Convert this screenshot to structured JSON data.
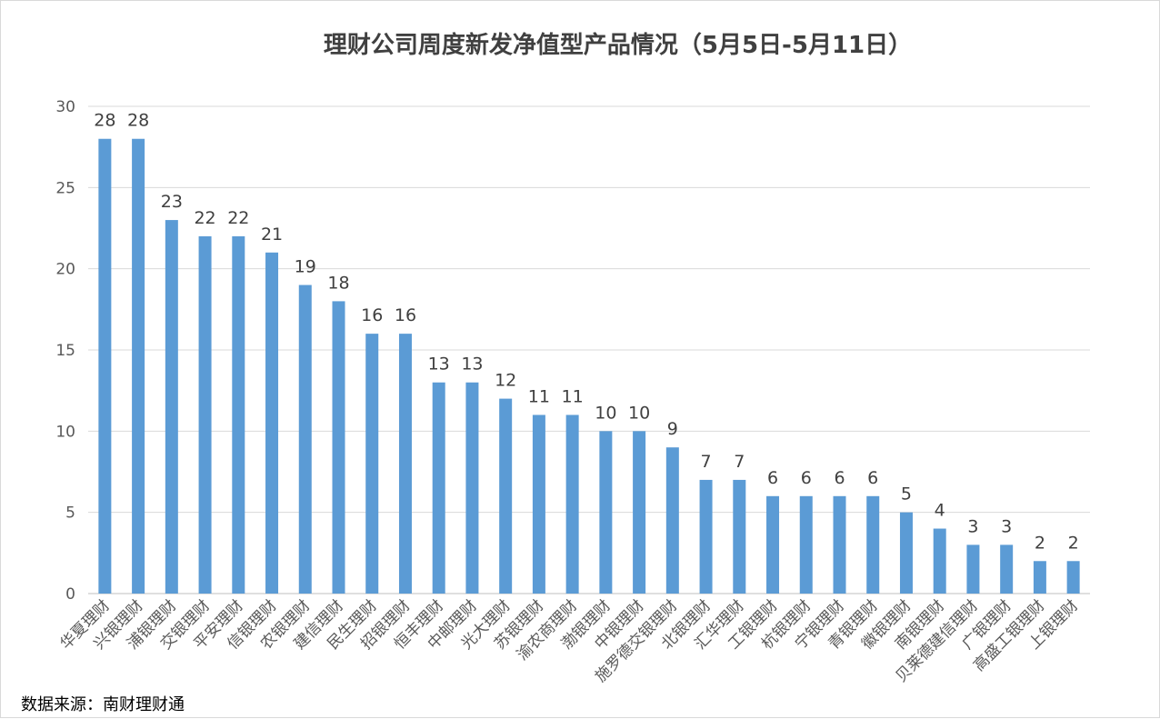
{
  "source_note": "数据来源：南财理财通",
  "chart_data": {
    "type": "bar",
    "title": "理财公司周度新发净值型产品情况（5月5日-5月11日）",
    "xlabel": "",
    "ylabel": "",
    "ylim": [
      0,
      30
    ],
    "yticks": [
      0,
      5,
      10,
      15,
      20,
      25,
      30
    ],
    "grid": true,
    "bar_color": "#5b9bd5",
    "categories": [
      "华夏理财",
      "兴银理财",
      "浦银理财",
      "交银理财",
      "平安理财",
      "信银理财",
      "农银理财",
      "建信理财",
      "民生理财",
      "招银理财",
      "恒丰理财",
      "中邮理财",
      "光大理财",
      "苏银理财",
      "渝农商理财",
      "渤银理财",
      "中银理财",
      "施罗德交银理财",
      "北银理财",
      "汇华理财",
      "工银理财",
      "杭银理财",
      "宁银理财",
      "青银理财",
      "徽银理财",
      "南银理财",
      "贝莱德建信理财",
      "广银理财",
      "高盛工银理财",
      "上银理财"
    ],
    "values": [
      28,
      28,
      23,
      22,
      22,
      21,
      19,
      18,
      16,
      16,
      13,
      13,
      12,
      11,
      11,
      10,
      10,
      9,
      7,
      7,
      6,
      6,
      6,
      6,
      5,
      4,
      3,
      3,
      2,
      2
    ]
  }
}
